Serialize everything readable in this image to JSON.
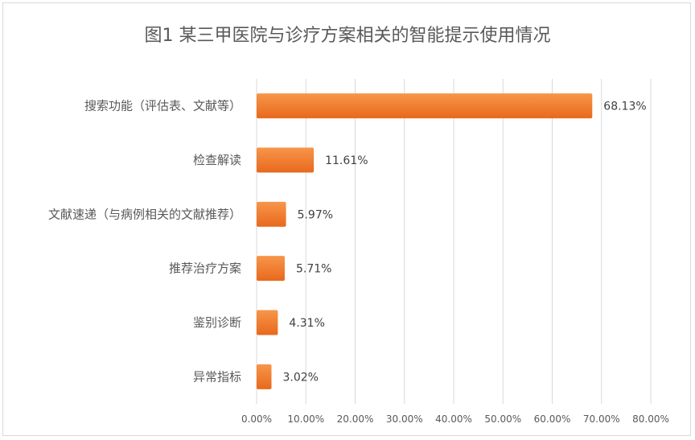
{
  "chart_data": {
    "type": "bar",
    "orientation": "horizontal",
    "title": "图1  某三甲医院与诊疗方案相关的智能提示使用情况",
    "categories": [
      "搜索功能（评估表、文献等）",
      "检查解读",
      "文献速递（与病例相关的文献推荐）",
      "推荐治疗方案",
      "鉴别诊断",
      "异常指标"
    ],
    "values": [
      68.13,
      11.61,
      5.97,
      5.71,
      4.31,
      3.02
    ],
    "value_labels": [
      "68.13%",
      "11.61%",
      "5.97%",
      "5.71%",
      "4.31%",
      "3.02%"
    ],
    "x_ticks": [
      "0.00%",
      "10.00%",
      "20.00%",
      "30.00%",
      "40.00%",
      "50.00%",
      "60.00%",
      "70.00%",
      "80.00%"
    ],
    "xlim": [
      0,
      80
    ],
    "grid": true,
    "legend": "none",
    "bar_color_light": "#f7964a",
    "bar_color_dark": "#e8691c"
  }
}
